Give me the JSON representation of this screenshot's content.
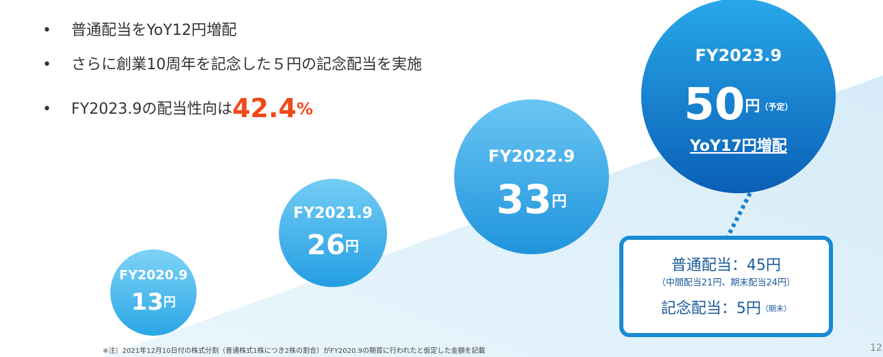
{
  "bullets": [
    {
      "text": "普通配当をYoY12円増配"
    },
    {
      "text": "さらに創業10周年を記念した５円の記念配当を実施"
    },
    {
      "text": "FY2023.9の配当性向は",
      "highlight": "42.4",
      "unit": "%"
    }
  ],
  "circles": [
    {
      "year": "FY2020.9",
      "amount": "13",
      "unit": "円"
    },
    {
      "year": "FY2021.9",
      "amount": "26",
      "unit": "円"
    },
    {
      "year": "FY2022.9",
      "amount": "33",
      "unit": "円"
    },
    {
      "year": "FY2023.9",
      "amount": "50",
      "unit": "円",
      "note": "（予定）",
      "increase": "YoY17円増配"
    }
  ],
  "breakdown": {
    "ordinary": "普通配当：45円",
    "ordinary_detail": "（中間配当21円、期末配当24円）",
    "memorial": "記念配当：5円",
    "memorial_note": "（期末）"
  },
  "footnote": "※注）2021年12月10日付の株式分割（普通株式1株につき2株の割合）がFY2020.9の期首に行われたと仮定した金額を記載",
  "page_number": "12"
}
